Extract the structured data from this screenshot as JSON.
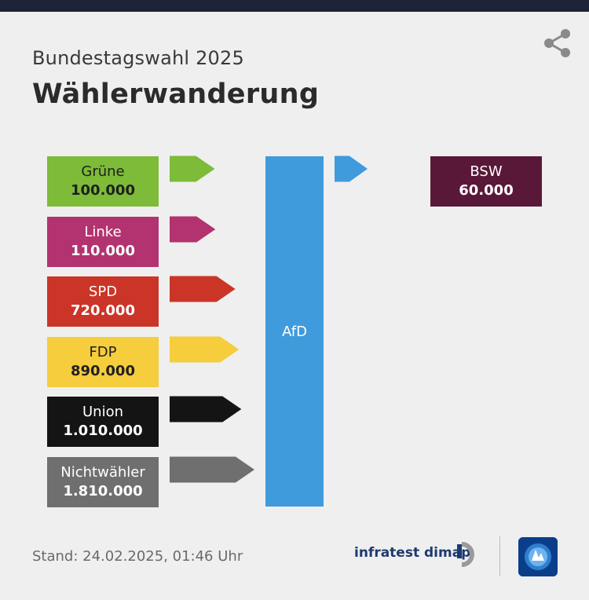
{
  "header": {
    "subtitle": "Bundestagswahl 2025",
    "title": "Wählerwanderung"
  },
  "footer": {
    "stand": "Stand:  24.02.2025, 01:46 Uhr",
    "brand": "infratest dimap"
  },
  "chart_data": {
    "type": "flow",
    "target": {
      "name": "AfD",
      "color": "#3f9bdc"
    },
    "inflows": [
      {
        "name": "Grüne",
        "value": 100000,
        "label": "100.000",
        "color": "#7dbb38",
        "text_color": "#1f1f1f"
      },
      {
        "name": "Linke",
        "value": 110000,
        "label": "110.000",
        "color": "#b2336f",
        "text_color": "#ffffff"
      },
      {
        "name": "SPD",
        "value": 720000,
        "label": "720.000",
        "color": "#cb3528",
        "text_color": "#ffffff"
      },
      {
        "name": "FDP",
        "value": 890000,
        "label": "890.000",
        "color": "#f5cd3d",
        "text_color": "#1f1f1f"
      },
      {
        "name": "Union",
        "value": 1010000,
        "label": "1.010.000",
        "color": "#141414",
        "text_color": "#ffffff"
      },
      {
        "name": "Nichtwähler",
        "value": 1810000,
        "label": "1.810.000",
        "color": "#6f6f6f",
        "text_color": "#ffffff"
      }
    ],
    "outflows": [
      {
        "name": "BSW",
        "value": 60000,
        "label": "60.000",
        "color": "#5a1838",
        "text_color": "#ffffff"
      }
    ]
  }
}
